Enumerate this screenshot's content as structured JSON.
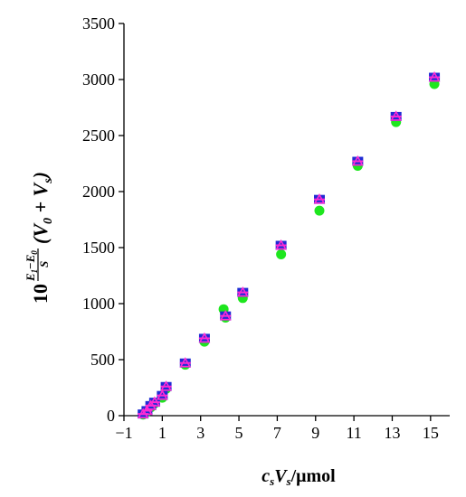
{
  "chart_data": {
    "type": "scatter",
    "xlim": [
      -1,
      16
    ],
    "ylim": [
      0,
      3500
    ],
    "x_ticks": [
      -1,
      1,
      3,
      5,
      7,
      9,
      11,
      13,
      15
    ],
    "x_tick_labels": [
      "−1",
      "1",
      "3",
      "5",
      "7",
      "9",
      "11",
      "13",
      "15"
    ],
    "y_ticks": [
      0,
      500,
      1000,
      1500,
      2000,
      2500,
      3000,
      3500
    ],
    "y_tick_labels": [
      "0",
      "500",
      "1000",
      "1500",
      "2000",
      "2500",
      "3000",
      "3500"
    ],
    "xlabel": {
      "c": "c",
      "s1": "s",
      "V": "V",
      "s2": "s",
      "rest": "/μmol"
    },
    "ylabel": {
      "ten": "10",
      "num_E1": "E",
      "num_1": "1",
      "minus": "−",
      "num_E0": "E",
      "num_0": "0",
      "den": "S",
      "paren": "(V",
      "zero": "0",
      "plus": " + V",
      "sub_s": "s",
      "close": ")"
    },
    "grid": false,
    "legend": "none",
    "series": [
      {
        "marker": "circle",
        "color": "#1ee61e",
        "x": [
          0.0,
          0.2,
          0.4,
          0.6,
          1.0,
          1.2,
          2.2,
          3.2,
          4.2,
          4.3,
          5.2,
          7.2,
          9.2,
          11.2,
          13.2,
          15.2
        ],
        "y": [
          10,
          35,
          75,
          110,
          160,
          240,
          455,
          660,
          950,
          875,
          1050,
          1440,
          1830,
          2230,
          2620,
          2960
        ]
      },
      {
        "marker": "square",
        "color": "#1f2bd4",
        "x": [
          0.0,
          0.2,
          0.4,
          0.6,
          1.0,
          1.2,
          2.2,
          3.2,
          4.3,
          5.2,
          7.2,
          9.2,
          11.2,
          13.2,
          15.2
        ],
        "y": [
          15,
          45,
          90,
          120,
          180,
          260,
          470,
          690,
          890,
          1100,
          1520,
          1930,
          2270,
          2670,
          3020
        ]
      },
      {
        "marker": "triangle",
        "color": "#ff2ad4",
        "x": [
          0.0,
          0.2,
          0.4,
          0.6,
          1.0,
          1.2,
          2.2,
          3.2,
          4.3,
          5.2,
          7.2,
          9.2,
          11.2,
          13.2,
          15.2
        ],
        "y": [
          15,
          45,
          90,
          120,
          180,
          260,
          470,
          690,
          890,
          1100,
          1520,
          1930,
          2270,
          2670,
          3020
        ]
      },
      {
        "marker": "dash",
        "color": "#ff2ad4",
        "x": [
          0.0,
          0.2,
          0.4,
          0.6,
          1.0,
          1.2,
          2.2,
          3.2,
          4.3,
          5.2,
          7.2,
          9.2,
          11.2,
          13.2,
          15.2
        ],
        "y": [
          15,
          45,
          90,
          120,
          180,
          260,
          470,
          690,
          890,
          1100,
          1520,
          1930,
          2270,
          2670,
          3020
        ]
      }
    ]
  }
}
